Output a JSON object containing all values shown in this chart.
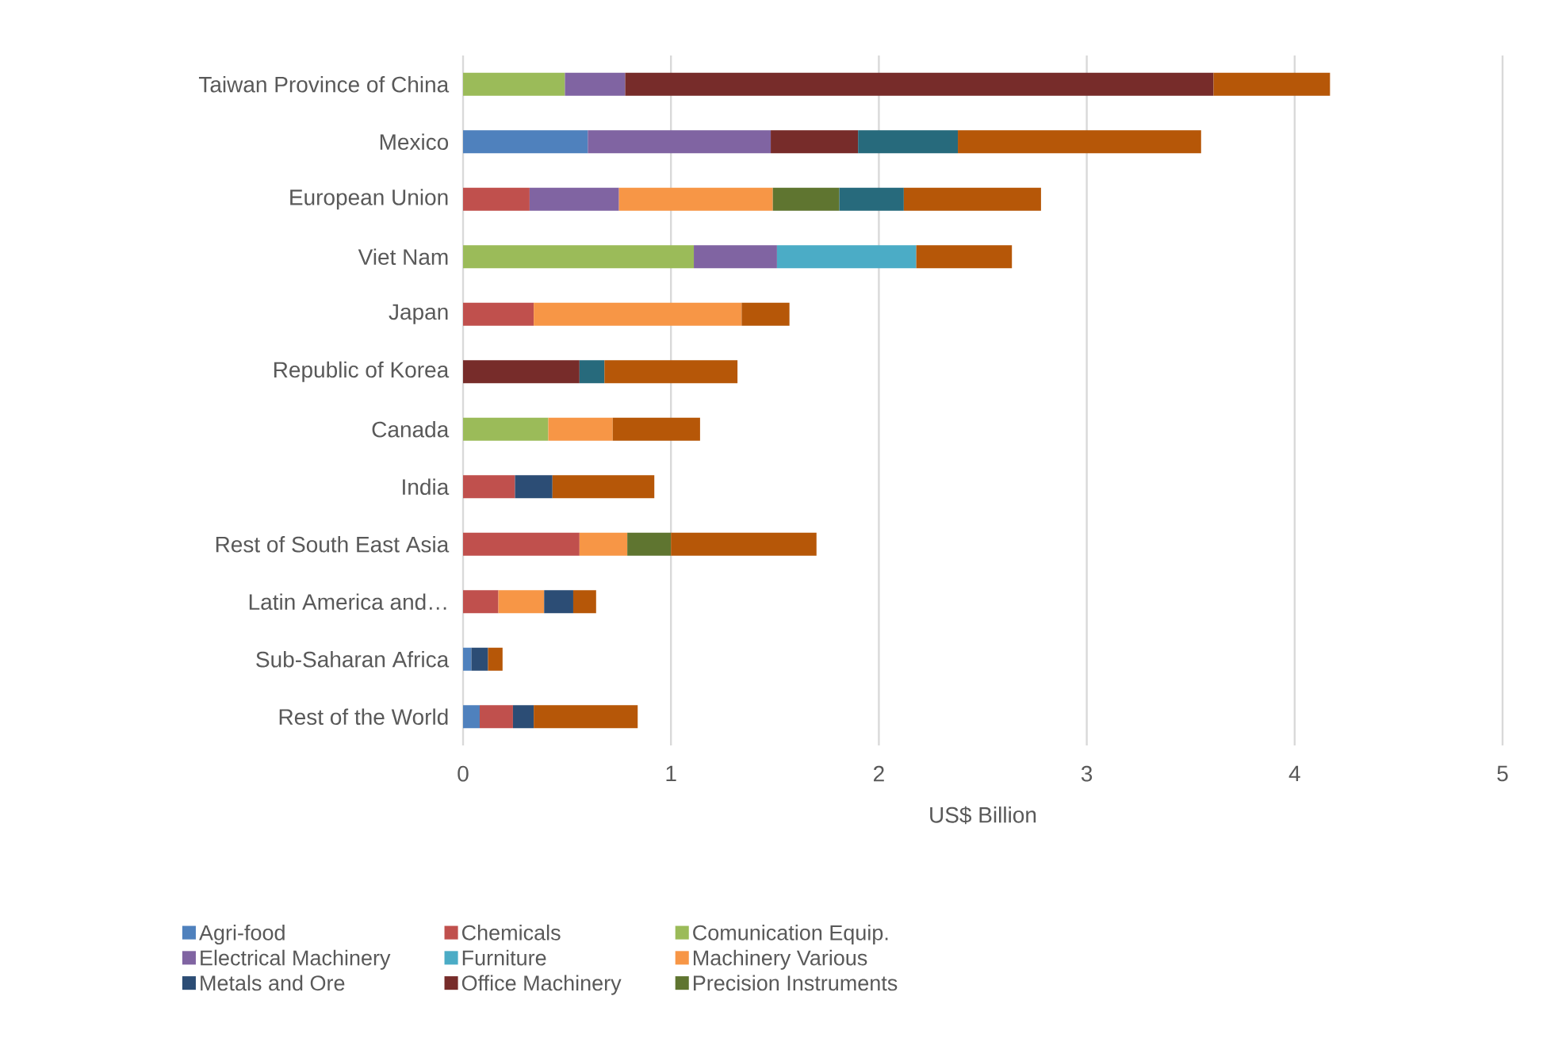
{
  "chart_data": {
    "type": "bar",
    "orientation": "horizontal",
    "stacked": true,
    "categories": [
      "Taiwan Province of China",
      "Mexico",
      "European Union",
      "Viet Nam",
      "Japan",
      "Republic of Korea",
      "Canada",
      "India",
      "Rest of South East Asia",
      "Latin America and…",
      "Sub-Saharan Africa",
      "Rest of the World"
    ],
    "series": [
      {
        "name": "Agri-food",
        "color": "#4f81bd",
        "values": [
          null,
          0.6,
          null,
          null,
          null,
          null,
          null,
          null,
          null,
          null,
          0.04,
          0.08
        ]
      },
      {
        "name": "Chemicals",
        "color": "#c0504d",
        "values": [
          null,
          null,
          0.32,
          null,
          0.34,
          null,
          null,
          0.25,
          0.56,
          0.17,
          null,
          0.16
        ]
      },
      {
        "name": "Comunication Equip.",
        "color": "#9bbb59",
        "values": [
          0.49,
          null,
          null,
          1.11,
          null,
          null,
          0.41,
          null,
          null,
          null,
          null,
          null
        ]
      },
      {
        "name": "Electrical Machinery",
        "color": "#8064a2",
        "values": [
          0.29,
          0.88,
          0.43,
          0.4,
          null,
          null,
          null,
          null,
          null,
          null,
          null,
          null
        ]
      },
      {
        "name": "Furniture",
        "color": "#4bacc6",
        "values": [
          null,
          null,
          null,
          0.67,
          null,
          null,
          null,
          null,
          null,
          null,
          null,
          null
        ]
      },
      {
        "name": "Machinery Various",
        "color": "#f79646",
        "values": [
          null,
          null,
          0.74,
          null,
          1.0,
          null,
          0.31,
          null,
          0.23,
          0.22,
          null,
          null
        ]
      },
      {
        "name": "Metals and Ore",
        "color": "#2c4d75",
        "values": [
          null,
          null,
          null,
          null,
          null,
          null,
          null,
          0.18,
          null,
          0.14,
          0.08,
          0.1
        ]
      },
      {
        "name": "Office Machinery",
        "color": "#772c2a",
        "values": [
          2.83,
          0.42,
          null,
          null,
          null,
          0.56,
          null,
          null,
          null,
          null,
          null,
          null
        ]
      },
      {
        "name": "Precision Instruments",
        "color": "#5f7530",
        "values": [
          null,
          null,
          0.32,
          null,
          null,
          null,
          null,
          null,
          0.21,
          null,
          null,
          null
        ]
      },
      {
        "color": "#276a7c",
        "values": [
          null,
          0.48,
          0.31,
          null,
          null,
          0.12,
          null,
          null,
          null,
          null,
          null,
          null
        ]
      },
      {
        "color": "#b65708",
        "values": [
          0.56,
          1.17,
          0.66,
          0.46,
          0.23,
          0.64,
          0.42,
          0.49,
          0.7,
          0.11,
          0.07,
          0.5
        ]
      }
    ],
    "xlabel": "US$ Billion",
    "xlim": [
      0,
      5
    ],
    "xticks": [
      0,
      1,
      2,
      3,
      4,
      5
    ],
    "grid": "x",
    "legend": "bottom"
  }
}
